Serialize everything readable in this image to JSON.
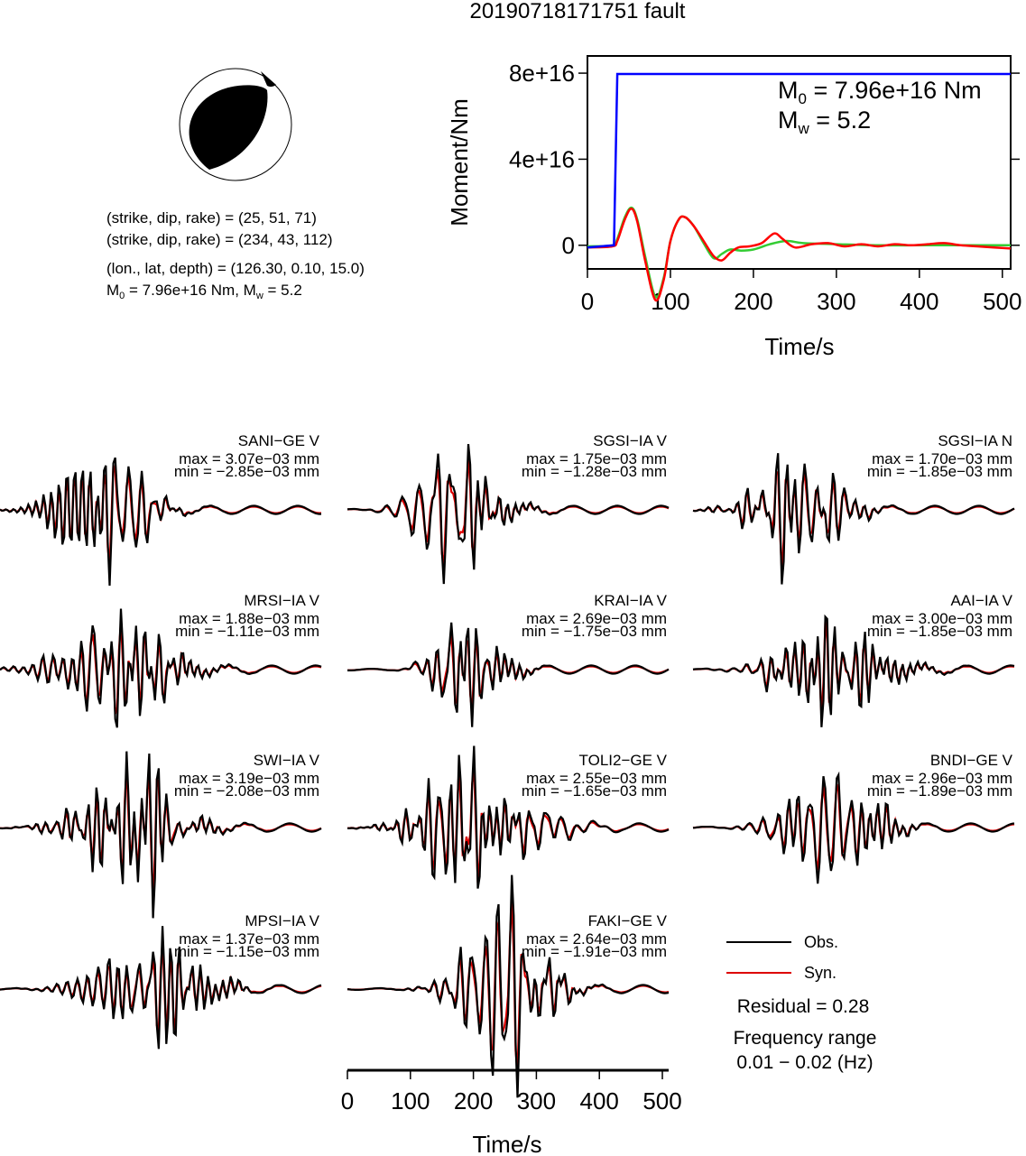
{
  "title": "20190718171751 fault",
  "mechanism": {
    "strike_line1": "(strike, dip, rake) = (25, 51, 71)",
    "strike_line2": "(strike, dip, rake) = (234, 43, 112)",
    "location_line": "(lon., lat, depth) = (126.30, 0.10, 15.0)",
    "moment_prefix": "M",
    "moment_sub": "0",
    "moment_rest": " = 7.96e+16 Nm, M",
    "mw_sub": "w",
    "mw_rest": " = 5.2"
  },
  "chart_data": [
    {
      "type": "line",
      "name": "moment-rate",
      "ylabel": "Moment/Nm",
      "xlabel": "Time/s",
      "xlim": [
        0,
        510
      ],
      "ylim": [
        -1.1e+16,
        8.8e+16
      ],
      "yticks": [
        "0",
        "4e+16",
        "8e+16"
      ],
      "ytick_values": [
        0,
        4e+16,
        8e+16
      ],
      "xticks": [
        "0",
        "100",
        "200",
        "300",
        "400",
        "500"
      ],
      "xtick_values": [
        0,
        100,
        200,
        300,
        400,
        500
      ],
      "annotation": {
        "m0_label": "M",
        "m0_sub": "0",
        "m0_rest": " = 7.96e+16 Nm",
        "mw_label": "M",
        "mw_sub": "w",
        "mw_rest": " = 5.2"
      },
      "series": [
        {
          "color": "#0000ff",
          "x": [
            0,
            32,
            36,
            510
          ],
          "y": [
            -1000000000000000.0,
            0,
            7.96e+16,
            7.96e+16
          ]
        },
        {
          "color": "#ff0000",
          "x": [
            0,
            30,
            36,
            45,
            53,
            60,
            70,
            82,
            92,
            100,
            110,
            118,
            128,
            140,
            152,
            162,
            172,
            182,
            195,
            210,
            225,
            235,
            250,
            270,
            290,
            310,
            330,
            350,
            370,
            390,
            410,
            430,
            450,
            470,
            490,
            510
          ],
          "y": [
            -1000000000000000.0,
            -500000000000000.0,
            2000000000000000.0,
            1.2e+16,
            1.7e+16,
            1.1e+16,
            -8000000000000000.0,
            -2.55e+16,
            -1.6e+16,
            2000000000000000.0,
            1.2e+16,
            1.3e+16,
            9000000000000000.0,
            2000000000000000.0,
            -5000000000000000.0,
            -7000000000000000.0,
            -3500000000000000.0,
            -1000000000000000.0,
            -500000000000000.0,
            1000000000000000.0,
            5500000000000000.0,
            3000000000000000.0,
            -1000000000000000.0,
            500000000000000.0,
            1000000000000000.0,
            -500000000000000.0,
            500000000000000.0,
            -500000000000000.0,
            500000000000000.0,
            0.0,
            500000000000000.0,
            1000000000000000.0,
            0.0,
            -500000000000000.0,
            -1000000000000000.0,
            -1500000000000000.0
          ]
        },
        {
          "color": "#33cc33",
          "x": [
            0,
            30,
            36,
            45,
            53,
            60,
            70,
            82,
            92,
            100,
            110,
            118,
            128,
            140,
            152,
            162,
            172,
            185,
            200,
            220,
            240,
            260,
            300,
            350,
            400,
            450,
            510
          ],
          "y": [
            -500000000000000.0,
            0,
            3000000000000000.0,
            1.3e+16,
            1.75e+16,
            1.2e+16,
            -6000000000000000.0,
            -2.4e+16,
            -1.5e+16,
            2000000000000000.0,
            1.2e+16,
            1.3e+16,
            9000000000000000.0,
            1000000000000000.0,
            -6000000000000000.0,
            -4000000000000000.0,
            -2000000000000000.0,
            -2500000000000000.0,
            -2000000000000000.0,
            500000000000000.0,
            2000000000000000.0,
            1000000000000000.0,
            500000000000000.0,
            0.0,
            0.0,
            0.0,
            0.0
          ]
        }
      ]
    },
    {
      "type": "line",
      "name": "waveforms",
      "xlabel": "Time/s",
      "xlim": [
        0,
        510
      ],
      "xticks": [
        "0",
        "100",
        "200",
        "300",
        "400",
        "500"
      ],
      "xtick_values": [
        0,
        100,
        200,
        300,
        400,
        500
      ],
      "legend": {
        "obs": "Obs.",
        "syn": "Syn.",
        "obs_color": "#000000",
        "syn_color": "#dd0000",
        "placement": "bottom-right"
      },
      "residual": "Residual = 0.28",
      "frequency_title": "Frequency range",
      "frequency_value": "0.01 − 0.02 (Hz)",
      "stations": [
        {
          "label": "SANI−GE V",
          "max": "max = 3.07e−03 mm",
          "min": "min = −2.85e−03 mm",
          "seed": 3,
          "onset": 60
        },
        {
          "label": "SGSI−IA V",
          "max": "max = 1.75e−03 mm",
          "min": "min = −1.28e−03 mm",
          "seed": 7,
          "onset": 90
        },
        {
          "label": "SGSI−IA N",
          "max": "max = 1.70e−03 mm",
          "min": "min = −1.85e−03 mm",
          "seed": 11,
          "onset": 80
        },
        {
          "label": "MRSI−IA V",
          "max": "max = 1.88e−03 mm",
          "min": "min = −1.11e−03 mm",
          "seed": 13,
          "onset": 90
        },
        {
          "label": "KRAI−IA V",
          "max": "max = 2.69e−03 mm",
          "min": "min = −1.75e−03 mm",
          "seed": 17,
          "onset": 90
        },
        {
          "label": "AAI−IA V",
          "max": "max = 3.00e−03 mm",
          "min": "min = −1.85e−03 mm",
          "seed": 19,
          "onset": 110
        },
        {
          "label": "SWI−IA V",
          "max": "max = 3.19e−03 mm",
          "min": "min = −2.08e−03 mm",
          "seed": 23,
          "onset": 100
        },
        {
          "label": "TOLI2−GE V",
          "max": "max = 2.55e−03 mm",
          "min": "min = −1.65e−03 mm",
          "seed": 29,
          "onset": 120
        },
        {
          "label": "BNDI−GE V",
          "max": "max = 2.96e−03 mm",
          "min": "min = −1.89e−03 mm",
          "seed": 31,
          "onset": 120
        },
        {
          "label": "MPSI−IA V",
          "max": "max = 1.37e−03 mm",
          "min": "min = −1.15e−03 mm",
          "seed": 37,
          "onset": 140
        },
        {
          "label": "FAKI−GE V",
          "max": "max = 2.64e−03 mm",
          "min": "min = −1.91e−03 mm",
          "seed": 41,
          "onset": 160
        }
      ]
    }
  ]
}
